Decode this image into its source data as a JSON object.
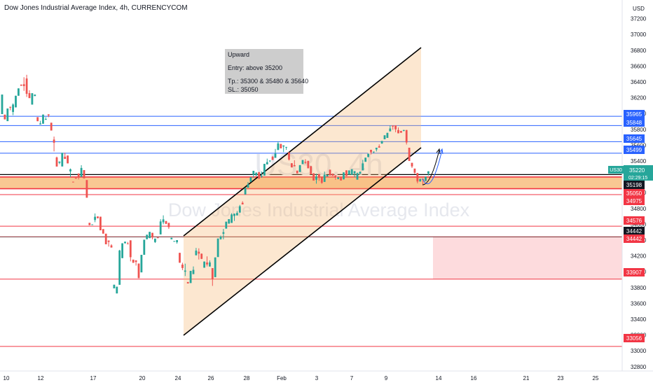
{
  "header": {
    "title": "Dow Jones Industrial Average Index, 4h, CURRENCYCOM"
  },
  "watermark": {
    "symbol": "US30, 4h",
    "name": "Dow Jones Industrial Average Index"
  },
  "note": {
    "line1": "Upward",
    "line2": "Entry: above 35200",
    "line3": "Tp.:  35300 & 35480 & 35640",
    "line4": "SL.: 35050"
  },
  "colors": {
    "up": "#26a69a",
    "down": "#ef5350",
    "blue_level": "#2962ff",
    "red_level": "#f23645",
    "zone": "#f7b66f"
  },
  "chart_data": {
    "type": "candlestick",
    "title": "Dow Jones Industrial Average Index, 4h, CURRENCYCOM",
    "y_unit": "USD",
    "ylim": [
      32600,
      37400
    ],
    "y_ticks": [
      32800,
      33000,
      33200,
      33400,
      33600,
      33800,
      34000,
      34200,
      34400,
      34600,
      34800,
      35000,
      35200,
      35400,
      35600,
      35800,
      36000,
      36200,
      36400,
      36600,
      36800,
      37000,
      37200
    ],
    "x_ticks": [
      "10",
      "12",
      "17",
      "20",
      "24",
      "26",
      "28",
      "Feb",
      "3",
      "7",
      "9",
      "14",
      "16",
      "21",
      "23",
      "25"
    ],
    "last_price": {
      "label": "US30",
      "value": "35220",
      "countdown": "02:29:15"
    },
    "blue_levels": [
      35965,
      35848,
      35645,
      35499
    ],
    "red_levels": [
      35198,
      35050,
      34975,
      34576,
      34442,
      33907,
      33056
    ],
    "black_levels": [
      34442
    ],
    "entry_zone": [
      35050,
      35198
    ],
    "price_labels": [
      {
        "text": "35965",
        "color": "#2962ff"
      },
      {
        "text": "35848",
        "color": "#2962ff"
      },
      {
        "text": "35645",
        "color": "#2962ff"
      },
      {
        "text": "35499",
        "color": "#2962ff"
      },
      {
        "text": "35198",
        "color": "#131722"
      },
      {
        "text": "35050",
        "color": "#f23645"
      },
      {
        "text": "34975",
        "color": "#f23645"
      },
      {
        "text": "34576",
        "color": "#f23645"
      },
      {
        "text": "34442",
        "color": "#131722"
      },
      {
        "text": "34442",
        "color": "#f23645"
      },
      {
        "text": "33907",
        "color": "#f23645"
      },
      {
        "text": "33056",
        "color": "#f23645"
      }
    ],
    "candles": [
      [
        35993,
        36240,
        35920,
        36250
      ],
      [
        35986,
        35926,
        35930,
        35987
      ],
      [
        35904,
        36064,
        35961,
        36083
      ],
      [
        36085,
        36074,
        36087,
        36041
      ],
      [
        36020,
        36114,
        36129,
        35979
      ],
      [
        36078,
        36225,
        36199,
        36225
      ],
      [
        36225,
        36318,
        36275,
        36332
      ],
      [
        36366,
        36351,
        36349,
        36393
      ],
      [
        36371,
        36347,
        36459,
        36287
      ],
      [
        36443,
        36249,
        36490,
        36210
      ],
      [
        36258,
        36195,
        36294,
        36260
      ],
      [
        36113,
        36257,
        36098,
        36295
      ],
      [
        36221,
        36240,
        36202,
        36278
      ],
      [
        35954,
        35903,
        35908,
        35942
      ],
      [
        35862,
        35875,
        35909,
        35897
      ],
      [
        35871,
        35987,
        35932,
        35920
      ],
      [
        35921,
        35930,
        35953,
        35967
      ],
      [
        35990,
        35977,
        35989,
        35954
      ],
      [
        35884,
        35785,
        35746,
        35839
      ],
      [
        35671,
        35631,
        35709,
        35521
      ],
      [
        35445,
        35330,
        35455,
        35362
      ],
      [
        35377,
        35393,
        35311,
        35360
      ],
      [
        35331,
        35504,
        35306,
        35525
      ],
      [
        35454,
        35426,
        35505,
        35462
      ],
      [
        35469,
        35370,
        35281,
        35421
      ],
      [
        35268,
        35296,
        35305,
        35197
      ],
      [
        35138,
        35131,
        35117,
        35148
      ],
      [
        35186,
        35176,
        35127,
        35185
      ],
      [
        35242,
        35197,
        35199,
        35167
      ],
      [
        35200,
        35312,
        35347,
        35228
      ],
      [
        35285,
        35181,
        35150,
        35232
      ],
      [
        35159,
        34936,
        34892,
        35143
      ],
      [
        34618,
        34589,
        34550,
        34591
      ],
      [
        34593,
        34599,
        34555,
        34594
      ],
      [
        34654,
        34695,
        34737,
        34626
      ],
      [
        34699,
        34676,
        34675,
        34698
      ],
      [
        34696,
        34524,
        34552,
        34535
      ],
      [
        34539,
        34482,
        34447,
        34591
      ],
      [
        34481,
        34347,
        34384,
        34348
      ],
      [
        34395,
        34377,
        34319,
        34318
      ],
      [
        34333,
        34306,
        34348,
        34322
      ],
      [
        33790,
        33836,
        33771,
        33891
      ],
      [
        33726,
        33811,
        33783,
        33872
      ],
      [
        33835,
        34269,
        34277,
        33940
      ],
      [
        34172,
        34360,
        34227,
        34310
      ],
      [
        34361,
        34380,
        34380,
        34356
      ],
      [
        34357,
        34353,
        34377,
        34381
      ],
      [
        34397,
        34184,
        34223,
        34131
      ],
      [
        34153,
        34113,
        34117,
        34118
      ],
      [
        34144,
        34124,
        34087,
        34078
      ],
      [
        34104,
        33919,
        33942,
        33950
      ],
      [
        33992,
        34214,
        34049,
        34201
      ],
      [
        34214,
        34405,
        34311,
        34426
      ],
      [
        34411,
        34468,
        34453,
        34474
      ],
      [
        34425,
        34504,
        34494,
        34488
      ],
      [
        34492,
        34433,
        34419,
        34410
      ],
      [
        34375,
        34419,
        34344,
        34364
      ],
      [
        34434,
        34426,
        34416,
        34423
      ],
      [
        34472,
        34636,
        34664,
        34597
      ],
      [
        34625,
        34662,
        34713,
        34601
      ],
      [
        34641,
        34606,
        34571,
        34602
      ],
      [
        34618,
        34564,
        34567,
        34541
      ],
      [
        34410,
        34429,
        34390,
        34458
      ],
      [
        34380,
        34388,
        34362,
        34453
      ],
      [
        34374,
        34400,
        34389,
        34355
      ],
      [
        34239,
        34114,
        34066,
        34118
      ],
      [
        34090,
        34047,
        34114,
        34020
      ],
      [
        34000,
        34015,
        34102,
        33946
      ],
      [
        33870,
        33852,
        33819,
        33863
      ],
      [
        33857,
        34011,
        33966,
        34029
      ],
      [
        33970,
        34024,
        34067,
        34072
      ],
      [
        34208,
        34267,
        34301,
        34288
      ],
      [
        34253,
        34229,
        34296,
        34155
      ],
      [
        34228,
        34163,
        34231,
        34160
      ],
      [
        34051,
        34129,
        34083,
        34109
      ],
      [
        34117,
        34092,
        34194,
        34067
      ],
      [
        34066,
        34118,
        34143,
        34069
      ],
      [
        34046,
        33908,
        33992,
        33821
      ],
      [
        33932,
        34181,
        34132,
        34185
      ],
      [
        34186,
        34420,
        34389,
        34388
      ],
      [
        34412,
        34444,
        34458,
        34405
      ],
      [
        34480,
        34500,
        34541,
        34410
      ],
      [
        34545,
        34633,
        34629,
        34648
      ],
      [
        34608,
        34665,
        34567,
        34660
      ],
      [
        34617,
        34724,
        34740,
        34710
      ],
      [
        34706,
        34734,
        34670,
        34642
      ],
      [
        34712,
        34743,
        34768,
        34774
      ],
      [
        34748,
        34828,
        34845,
        34765
      ],
      [
        34872,
        34851,
        34891,
        34915
      ],
      [
        34977,
        35060,
        34967,
        35059
      ],
      [
        35063,
        35106,
        35135,
        35118
      ],
      [
        35137,
        35196,
        35175,
        35137
      ],
      [
        35225,
        35276,
        35242,
        35189
      ],
      [
        35219,
        35252,
        35257,
        35208
      ],
      [
        35260,
        35175,
        35239,
        35185
      ],
      [
        35208,
        35211,
        35266,
        35188
      ],
      [
        35216,
        35364,
        35326,
        35387
      ],
      [
        35357,
        35386,
        35430,
        35359
      ],
      [
        35405,
        35406,
        35341,
        35385
      ],
      [
        35454,
        35413,
        35464,
        35441
      ],
      [
        35440,
        35493,
        35553,
        35516
      ],
      [
        35539,
        35622,
        35646,
        35664
      ],
      [
        35616,
        35560,
        35523,
        35614
      ],
      [
        35583,
        35597,
        35566,
        35512
      ],
      [
        35573,
        35578,
        35517,
        35541
      ],
      [
        35510,
        35418,
        35474,
        35406
      ],
      [
        35372,
        35319,
        35362,
        35360
      ],
      [
        35347,
        35333,
        35410,
        35337
      ],
      [
        35278,
        35243,
        35271,
        35245
      ],
      [
        35261,
        35348,
        35339,
        35391
      ],
      [
        35360,
        35413,
        35362,
        35432
      ],
      [
        35390,
        35377,
        35423,
        35363
      ],
      [
        35402,
        35308,
        35360,
        35337
      ],
      [
        35335,
        35232,
        35258,
        35253
      ],
      [
        35245,
        35153,
        35173,
        35155
      ],
      [
        35163,
        35205,
        35240,
        35113
      ],
      [
        35236,
        35186,
        35224,
        35149
      ],
      [
        35199,
        35124,
        35146,
        35112
      ],
      [
        35136,
        35227,
        35266,
        35219
      ],
      [
        35205,
        35223,
        35217,
        35250
      ],
      [
        35290,
        35216,
        35215,
        35219
      ],
      [
        35239,
        35212,
        35242,
        35215
      ],
      [
        35219,
        35188,
        35169,
        35162
      ],
      [
        35171,
        35194,
        35194,
        35208
      ],
      [
        35196,
        35154,
        35196,
        35158
      ],
      [
        35168,
        35256,
        35250,
        35245
      ],
      [
        35282,
        35210,
        35282,
        35230
      ],
      [
        35229,
        35281,
        35279,
        35274
      ],
      [
        35224,
        35297,
        35277,
        35254
      ],
      [
        35243,
        35272,
        35231,
        35194
      ],
      [
        35164,
        35246,
        35255,
        35229
      ],
      [
        35238,
        35263,
        35267,
        35262
      ],
      [
        35281,
        35370,
        35415,
        35314
      ],
      [
        35390,
        35442,
        35400,
        35454
      ],
      [
        35449,
        35492,
        35415,
        35542
      ],
      [
        35542,
        35510,
        35535,
        35483
      ],
      [
        35519,
        35519,
        35493,
        35499
      ],
      [
        35546,
        35568,
        35517,
        35521
      ],
      [
        35586,
        35569,
        35610,
        35632
      ],
      [
        35621,
        35653,
        35654,
        35617
      ],
      [
        35675,
        35725,
        35697,
        35717
      ],
      [
        35692,
        35756,
        35722,
        35703
      ],
      [
        35775,
        35811,
        35849,
        35813
      ],
      [
        35847,
        35836,
        35851,
        35795
      ],
      [
        35850,
        35801,
        35835,
        35764
      ],
      [
        35791,
        35750,
        35824,
        35809
      ],
      [
        35781,
        35757,
        35778,
        35813
      ],
      [
        35780,
        35792,
        35746,
        35776
      ],
      [
        35792,
        35634,
        35637,
        35608
      ],
      [
        35568,
        35401,
        35358,
        35440
      ],
      [
        35377,
        35331,
        35330,
        35312
      ],
      [
        35304,
        35252,
        35229,
        35235
      ],
      [
        35248,
        35141,
        35170,
        35118
      ],
      [
        35141,
        35174,
        35150,
        35184
      ],
      [
        35172,
        35171,
        35165,
        35104
      ],
      [
        35147,
        35202,
        35184,
        35213
      ],
      [
        35241,
        35270,
        35258,
        35216
      ]
    ]
  }
}
